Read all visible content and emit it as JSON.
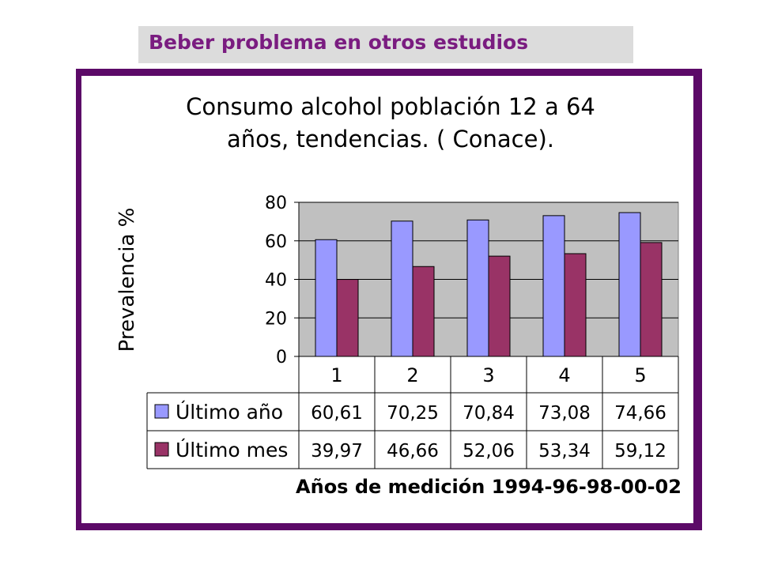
{
  "slide": {
    "title": "Beber problema en otros estudios"
  },
  "chart_data": {
    "type": "bar",
    "title_lines": [
      "Consumo alcohol población 12 a 64",
      "años, tendencias. ( Conace)."
    ],
    "ylabel": "Prevalencia   %",
    "xlabel": "Años de medición 1994-96-98-00-02",
    "categories": [
      "1",
      "2",
      "3",
      "4",
      "5"
    ],
    "ylim": [
      0,
      80
    ],
    "yticks": [
      0,
      20,
      40,
      60,
      80
    ],
    "grid": true,
    "legend_placement": "data-table",
    "series": [
      {
        "name": "Último año",
        "color": "#9999ff",
        "values": [
          60.61,
          70.25,
          70.84,
          73.08,
          74.66
        ],
        "labels": [
          "60,61",
          "70,25",
          "70,84",
          "73,08",
          "74,66"
        ]
      },
      {
        "name": "Último mes",
        "color": "#993366",
        "values": [
          39.97,
          46.66,
          52.06,
          53.34,
          59.12
        ],
        "labels": [
          "39,97",
          "46,66",
          "52,06",
          "53,34",
          "59,12"
        ]
      }
    ],
    "colors": {
      "frame": "#5c0a68",
      "title_text": "#7a1c80",
      "plot_background": "#c0c0c0"
    }
  }
}
